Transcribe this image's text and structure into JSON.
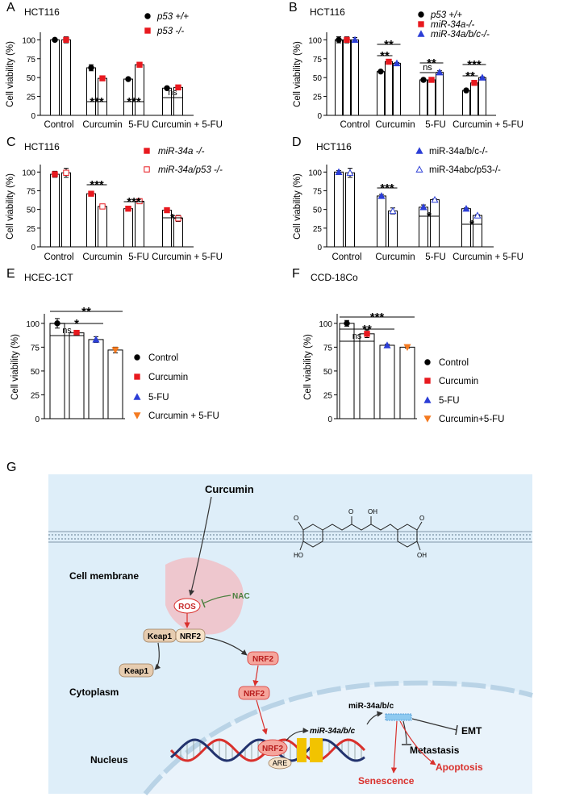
{
  "chart_data": [
    {
      "type": "bar",
      "panel": "A",
      "title": "HCT116",
      "ylabel": "Cell viability (%)",
      "categories": [
        "Control",
        "Curcumin",
        "5-FU",
        "Curcumin + 5-FU"
      ],
      "series": [
        {
          "name": "p53 +/+",
          "color": "#000000",
          "marker": "circle",
          "values": [
            100,
            63,
            48,
            36
          ],
          "errors": [
            2,
            4,
            1,
            1
          ]
        },
        {
          "name": "p53 -/-",
          "color": "#e8191f",
          "marker": "square",
          "values": [
            100,
            49,
            67,
            37
          ],
          "errors": [
            4,
            1,
            2,
            3
          ]
        }
      ],
      "ylim": [
        0,
        110
      ],
      "yticks": [
        0,
        25,
        50,
        75,
        100
      ],
      "annotations": [
        "***",
        "***",
        "ns"
      ]
    },
    {
      "type": "bar",
      "panel": "B",
      "title": "HCT116",
      "ylabel": "Cell viability (%)",
      "categories": [
        "Control",
        "Curcumin",
        "5-FU",
        "Curcumin + 5-FU"
      ],
      "series": [
        {
          "name": "p53 +/+",
          "color": "#000000",
          "marker": "circle",
          "values": [
            100,
            58,
            47,
            33
          ],
          "errors": [
            4,
            1,
            2,
            2
          ]
        },
        {
          "name": "miR-34a-/-",
          "color": "#e8191f",
          "marker": "square",
          "values": [
            100,
            71,
            47,
            43
          ],
          "errors": [
            4,
            2,
            1,
            2
          ]
        },
        {
          "name": "miR-34a/b/c-/-",
          "color": "#2c3ed6",
          "marker": "triangle",
          "values": [
            100,
            69,
            57,
            50
          ],
          "errors": [
            3,
            1,
            2,
            1
          ]
        }
      ],
      "ylim": [
        0,
        110
      ],
      "yticks": [
        0,
        25,
        50,
        75,
        100
      ],
      "annotations": [
        "**",
        "**",
        "**",
        "ns",
        "***",
        "**"
      ]
    },
    {
      "type": "bar",
      "panel": "C",
      "title": "HCT116",
      "ylabel": "Cell viability (%)",
      "categories": [
        "Control",
        "Curcumin",
        "5-FU",
        "Curcumin + 5-FU"
      ],
      "series": [
        {
          "name": "miR-34a -/-",
          "color": "#e8191f",
          "marker": "square",
          "filled": true,
          "values": [
            97,
            71,
            51,
            49
          ],
          "errors": [
            4,
            2,
            2,
            1
          ]
        },
        {
          "name": "miR-34a/p53 -/-",
          "color": "#e8191f",
          "marker": "square",
          "filled": false,
          "values": [
            99,
            54,
            61,
            38
          ],
          "errors": [
            6,
            2,
            1,
            4
          ]
        }
      ],
      "ylim": [
        0,
        110
      ],
      "yticks": [
        0,
        25,
        50,
        75,
        100
      ],
      "annotations": [
        "***",
        "***",
        "*"
      ]
    },
    {
      "type": "bar",
      "panel": "D",
      "title": "HCT116",
      "ylabel": "Cell viability (%)",
      "categories": [
        "Control",
        "Curcumin",
        "5-FU",
        "Curcumin + 5-FU"
      ],
      "series": [
        {
          "name": "miR-34a/b/c-/-",
          "color": "#2c3ed6",
          "marker": "triangle",
          "filled": true,
          "values": [
            100,
            68,
            53,
            51
          ],
          "errors": [
            2,
            2,
            3,
            1
          ]
        },
        {
          "name": "miR-34abc/p53-/-",
          "color": "#2c3ed6",
          "marker": "triangle",
          "filled": false,
          "values": [
            99,
            48,
            63,
            42
          ],
          "errors": [
            6,
            4,
            1,
            1
          ]
        }
      ],
      "ylim": [
        0,
        110
      ],
      "yticks": [
        0,
        25,
        50,
        75,
        100
      ],
      "annotations": [
        "***",
        "*",
        "*"
      ]
    },
    {
      "type": "bar",
      "panel": "E",
      "title": "HCEC-1CT",
      "ylabel": "Cell viability (%)",
      "categories": [
        "Control",
        "Curcumin",
        "5-FU",
        "Curcumin + 5-FU"
      ],
      "values": [
        100,
        90,
        83,
        72
      ],
      "errors": [
        5,
        1,
        3,
        3
      ],
      "colors": [
        "#000000",
        "#e8191f",
        "#2c3ed6",
        "#f47a20"
      ],
      "markers": [
        "circle",
        "square",
        "triangle",
        "triangle-down"
      ],
      "ylim": [
        0,
        110
      ],
      "yticks": [
        0,
        25,
        50,
        75,
        100
      ],
      "annotations": [
        "ns",
        "*",
        "**"
      ]
    },
    {
      "type": "bar",
      "panel": "F",
      "title": "CCD-18Co",
      "ylabel": "Cell viability (%)",
      "categories": [
        "Control",
        "Curcumin",
        "5-FU",
        "Curcumin+5-FU"
      ],
      "values": [
        100,
        89,
        77,
        75
      ],
      "errors": [
        3,
        4,
        1,
        1
      ],
      "colors": [
        "#000000",
        "#e8191f",
        "#2c3ed6",
        "#f47a20"
      ],
      "markers": [
        "circle",
        "square",
        "triangle",
        "triangle-down"
      ],
      "ylim": [
        0,
        110
      ],
      "yticks": [
        0,
        25,
        50,
        75,
        100
      ],
      "annotations": [
        "ns",
        "**",
        "***"
      ]
    }
  ],
  "diagram": {
    "panel": "G",
    "curcumin": "Curcumin",
    "cell_membrane": "Cell membrane",
    "ros": "ROS",
    "nac": "NAC",
    "keap1": "Keap1",
    "nrf2": "NRF2",
    "cytoplasm": "Cytoplasm",
    "nucleus": "Nucleus",
    "mirna_gene": "miR-34a/b/c",
    "mirna": "miR-34a/b/c",
    "are": "ARE",
    "emt": "EMT",
    "metastasis": "Metastasis",
    "apoptosis": "Apoptosis",
    "senescence": "Senescence",
    "structure": [
      "O",
      "OH",
      "O",
      "HO",
      "O",
      "OH"
    ]
  }
}
